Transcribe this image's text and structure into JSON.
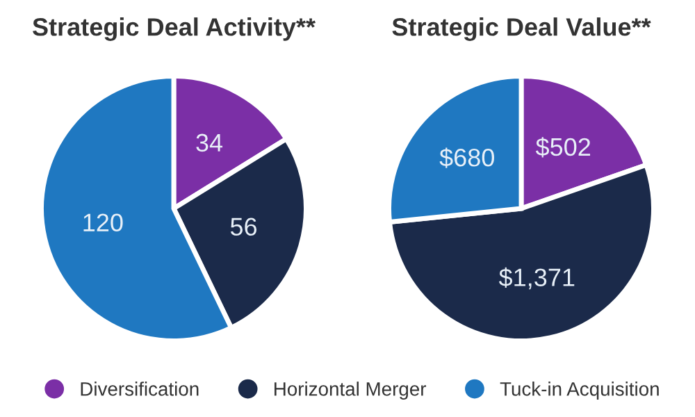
{
  "chart_data": [
    {
      "type": "pie",
      "title": "Strategic Deal Activity**",
      "categories": [
        "Diversification",
        "Horizontal Merger",
        "Tuck-in Acquisition"
      ],
      "values": [
        34,
        56,
        120
      ],
      "colors": [
        "#7b2fa6",
        "#1b2a4a",
        "#1f78c1"
      ],
      "data_labels": true,
      "legend": "bottom"
    },
    {
      "type": "pie",
      "title": "Strategic Deal Value**",
      "categories": [
        null,
        null,
        null
      ],
      "values": [
        502,
        1371,
        680
      ],
      "colors": [
        "#7b2fa6",
        "#1b2a4a",
        "#1f78c1"
      ],
      "value_labels": [
        "$502",
        "$1,371",
        "$680"
      ]
    }
  ]
}
